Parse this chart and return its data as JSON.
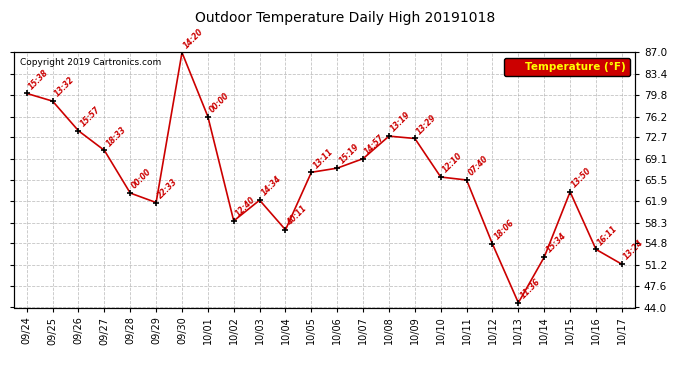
{
  "title": "Outdoor Temperature Daily High 20191018",
  "copyright": "Copyright 2019 Cartronics.com",
  "legend_label": "Temperature (°F)",
  "x_labels": [
    "09/24",
    "09/25",
    "09/26",
    "09/27",
    "09/28",
    "09/29",
    "09/30",
    "10/01",
    "10/02",
    "10/03",
    "10/04",
    "10/05",
    "10/06",
    "10/07",
    "10/08",
    "10/09",
    "10/10",
    "10/11",
    "10/12",
    "10/13",
    "10/14",
    "10/15",
    "10/16",
    "10/17"
  ],
  "y_values": [
    80.1,
    78.8,
    73.8,
    70.5,
    63.3,
    61.7,
    87.0,
    76.2,
    58.6,
    62.1,
    57.1,
    66.8,
    67.5,
    69.1,
    72.9,
    72.5,
    66.0,
    65.5,
    54.7,
    44.8,
    52.5,
    63.5,
    53.8,
    51.3
  ],
  "time_labels": [
    "15:38",
    "13:32",
    "15:57",
    "18:33",
    "00:00",
    "22:33",
    "14:20",
    "00:00",
    "12:40",
    "14:34",
    "40:11",
    "13:11",
    "15:19",
    "14:57",
    "13:19",
    "13:29",
    "12:10",
    "07:40",
    "18:06",
    "11:36",
    "15:34",
    "13:50",
    "16:11",
    "13:24"
  ],
  "y_ticks": [
    44.0,
    47.6,
    51.2,
    54.8,
    58.3,
    61.9,
    65.5,
    69.1,
    72.7,
    76.2,
    79.8,
    83.4,
    87.0
  ],
  "line_color": "#cc0000",
  "marker_color": "#000000",
  "bg_color": "#ffffff",
  "grid_color": "#aaaaaa",
  "title_color": "#000000",
  "label_color": "#cc0000",
  "legend_bg": "#cc0000",
  "legend_text": "#ffff00"
}
